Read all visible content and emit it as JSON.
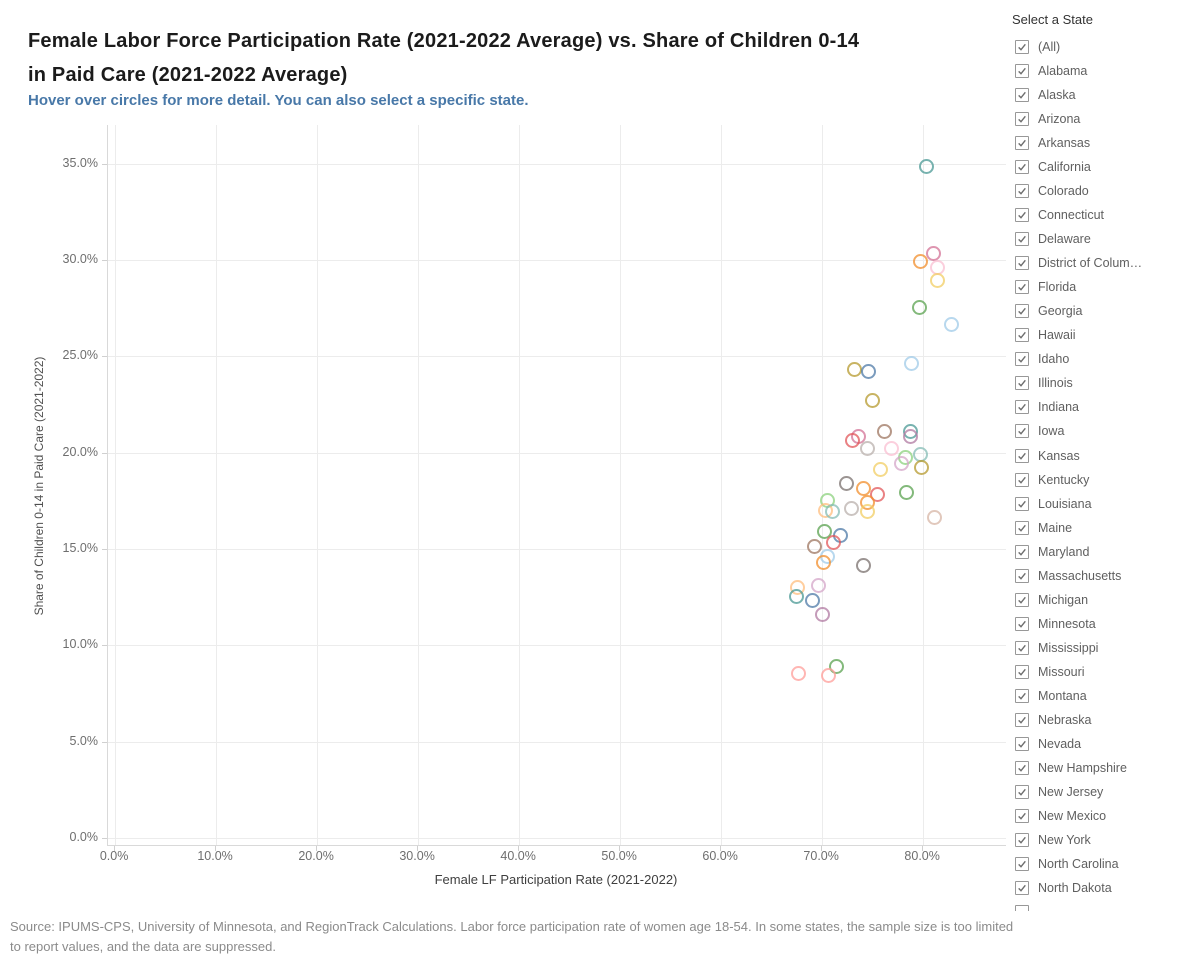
{
  "header": {
    "title_line1": "Female Labor Force Participation Rate (2021-2022 Average) vs. Share of Children 0-14",
    "title_line2": "in Paid Care (2021-2022 Average)",
    "subtitle": "Hover over circles for more detail. You can also select a specific state.",
    "subtitle_color": "#4878a8"
  },
  "filter": {
    "title": "Select a State",
    "all_checked": true,
    "items": [
      "(All)",
      "Alabama",
      "Alaska",
      "Arizona",
      "Arkansas",
      "California",
      "Colorado",
      "Connecticut",
      "Delaware",
      "District of Colum…",
      "Florida",
      "Georgia",
      "Hawaii",
      "Idaho",
      "Illinois",
      "Indiana",
      "Iowa",
      "Kansas",
      "Kentucky",
      "Louisiana",
      "Maine",
      "Maryland",
      "Massachusetts",
      "Michigan",
      "Minnesota",
      "Mississippi",
      "Missouri",
      "Montana",
      "Nebraska",
      "Nevada",
      "New Hampshire",
      "New Jersey",
      "New Mexico",
      "New York",
      "North Carolina",
      "North Dakota"
    ],
    "partial_next_row": true
  },
  "footer": {
    "line1": "Source: IPUMS-CPS, University of Minnesota, and RegionTrack Calculations. Labor force participation rate of women age 18-54.  In some states, the sample size is too limited",
    "line2": "to report values, and the data are suppressed."
  },
  "chart_data": {
    "type": "scatter",
    "title": "Female Labor Force Participation Rate (2021-2022 Average) vs. Share of Children 0-14 in Paid Care (2021-2022 Average)",
    "xlabel": "Female LF Participation Rate (2021-2022)",
    "ylabel": "Share of Children 0-14 in Paid Care (2021-2022)",
    "marker": "open-circle",
    "grid": true,
    "xlim": [
      -0.7,
      88.2
    ],
    "ylim": [
      -0.35,
      37.0
    ],
    "x_ticks": [
      {
        "value": 0,
        "label": "0.0%"
      },
      {
        "value": 10,
        "label": "10.0%"
      },
      {
        "value": 20,
        "label": "20.0%"
      },
      {
        "value": 30,
        "label": "30.0%"
      },
      {
        "value": 40,
        "label": "40.0%"
      },
      {
        "value": 50,
        "label": "50.0%"
      },
      {
        "value": 60,
        "label": "60.0%"
      },
      {
        "value": 70,
        "label": "70.0%"
      },
      {
        "value": 80,
        "label": "80.0%"
      }
    ],
    "y_ticks": [
      {
        "value": 0,
        "label": "0.0%"
      },
      {
        "value": 5,
        "label": "5.0%"
      },
      {
        "value": 10,
        "label": "10.0%"
      },
      {
        "value": 15,
        "label": "15.0%"
      },
      {
        "value": 20,
        "label": "20.0%"
      },
      {
        "value": 25,
        "label": "25.0%"
      },
      {
        "value": 30,
        "label": "30.0%"
      },
      {
        "value": 35,
        "label": "35.0%"
      }
    ],
    "points": [
      {
        "x": 80.4,
        "y": 34.8,
        "color": "#499894"
      },
      {
        "x": 81.1,
        "y": 30.3,
        "color": "#D37295"
      },
      {
        "x": 79.8,
        "y": 29.9,
        "color": "#F28E2B"
      },
      {
        "x": 81.5,
        "y": 29.6,
        "color": "#FABFD2"
      },
      {
        "x": 81.5,
        "y": 28.9,
        "color": "#F1CE63"
      },
      {
        "x": 79.7,
        "y": 27.5,
        "color": "#59A14F"
      },
      {
        "x": 82.9,
        "y": 26.6,
        "color": "#A0CBE8"
      },
      {
        "x": 78.9,
        "y": 24.6,
        "color": "#A0CBE8"
      },
      {
        "x": 73.3,
        "y": 24.3,
        "color": "#B6992D"
      },
      {
        "x": 74.6,
        "y": 24.2,
        "color": "#4E79A7"
      },
      {
        "x": 75.0,
        "y": 22.7,
        "color": "#B6992D"
      },
      {
        "x": 76.2,
        "y": 21.1,
        "color": "#9D7660"
      },
      {
        "x": 78.8,
        "y": 21.1,
        "color": "#499894"
      },
      {
        "x": 78.8,
        "y": 20.8,
        "color": "#B07AA1"
      },
      {
        "x": 73.6,
        "y": 20.8,
        "color": "#D37295"
      },
      {
        "x": 73.1,
        "y": 20.6,
        "color": "#E15759"
      },
      {
        "x": 74.5,
        "y": 20.2,
        "color": "#BAB0AC"
      },
      {
        "x": 76.9,
        "y": 20.2,
        "color": "#FABFD2"
      },
      {
        "x": 79.8,
        "y": 19.9,
        "color": "#86BCB6"
      },
      {
        "x": 78.3,
        "y": 19.7,
        "color": "#8CD17D"
      },
      {
        "x": 77.9,
        "y": 19.4,
        "color": "#D4A6C8"
      },
      {
        "x": 79.9,
        "y": 19.2,
        "color": "#B6992D"
      },
      {
        "x": 75.8,
        "y": 19.1,
        "color": "#F1CE63"
      },
      {
        "x": 72.5,
        "y": 18.4,
        "color": "#79706E"
      },
      {
        "x": 74.1,
        "y": 18.1,
        "color": "#F28E2B"
      },
      {
        "x": 78.4,
        "y": 17.9,
        "color": "#59A14F"
      },
      {
        "x": 75.5,
        "y": 17.8,
        "color": "#E15759"
      },
      {
        "x": 70.6,
        "y": 17.5,
        "color": "#8CD17D"
      },
      {
        "x": 74.5,
        "y": 17.4,
        "color": "#F28E2B"
      },
      {
        "x": 73.0,
        "y": 17.1,
        "color": "#BAB0AC"
      },
      {
        "x": 70.4,
        "y": 17.0,
        "color": "#FFBE7D"
      },
      {
        "x": 71.1,
        "y": 16.9,
        "color": "#86BCB6"
      },
      {
        "x": 74.5,
        "y": 16.9,
        "color": "#F1CE63"
      },
      {
        "x": 81.2,
        "y": 16.6,
        "color": "#D7B5A6"
      },
      {
        "x": 70.3,
        "y": 15.9,
        "color": "#59A14F"
      },
      {
        "x": 71.9,
        "y": 15.7,
        "color": "#4E79A7"
      },
      {
        "x": 71.2,
        "y": 15.3,
        "color": "#E15759"
      },
      {
        "x": 69.3,
        "y": 15.1,
        "color": "#9D7660"
      },
      {
        "x": 70.6,
        "y": 14.6,
        "color": "#A0CBE8"
      },
      {
        "x": 70.2,
        "y": 14.3,
        "color": "#F28E2B"
      },
      {
        "x": 74.1,
        "y": 14.1,
        "color": "#79706E"
      },
      {
        "x": 69.7,
        "y": 13.1,
        "color": "#D4A6C8"
      },
      {
        "x": 67.6,
        "y": 13.0,
        "color": "#FFBE7D"
      },
      {
        "x": 67.5,
        "y": 12.5,
        "color": "#499894"
      },
      {
        "x": 69.1,
        "y": 12.3,
        "color": "#4E79A7"
      },
      {
        "x": 70.1,
        "y": 11.6,
        "color": "#B07AA1"
      },
      {
        "x": 71.5,
        "y": 8.9,
        "color": "#59A14F"
      },
      {
        "x": 67.7,
        "y": 8.5,
        "color": "#FF9D9A"
      },
      {
        "x": 70.7,
        "y": 8.4,
        "color": "#FF9D9A"
      }
    ]
  }
}
